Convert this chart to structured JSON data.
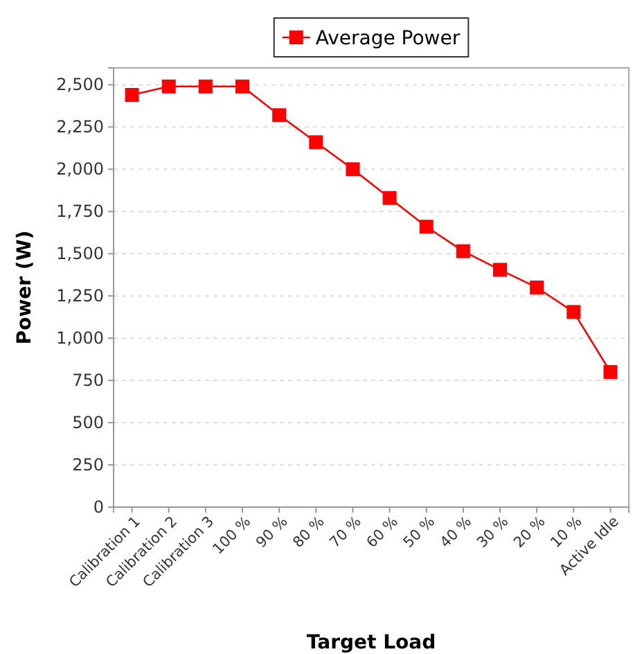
{
  "chart_data": {
    "type": "line",
    "xlabel": "Target Load",
    "ylabel": "Power (W)",
    "categories": [
      "Calibration 1",
      "Calibration 2",
      "Calibration 3",
      "100 %",
      "90 %",
      "80 %",
      "70 %",
      "60 %",
      "50 %",
      "40 %",
      "30 %",
      "20 %",
      "10 %",
      "Active Idle"
    ],
    "series": [
      {
        "name": "Average Power",
        "color": "#ff0000",
        "values": [
          2440,
          2490,
          2490,
          2490,
          2320,
          2160,
          2000,
          1830,
          1660,
          1515,
          1405,
          1300,
          1155,
          800
        ]
      }
    ],
    "ylim": [
      0,
      2600
    ],
    "yticks": [
      {
        "value": 0,
        "label": "0"
      },
      {
        "value": 250,
        "label": "250"
      },
      {
        "value": 500,
        "label": "500"
      },
      {
        "value": 750,
        "label": "750"
      },
      {
        "value": 1000,
        "label": "1,000"
      },
      {
        "value": 1250,
        "label": "1,250"
      },
      {
        "value": 1500,
        "label": "1,500"
      },
      {
        "value": 1750,
        "label": "1,750"
      },
      {
        "value": 2000,
        "label": "2,000"
      },
      {
        "value": 2250,
        "label": "2,250"
      },
      {
        "value": 2500,
        "label": "2,500"
      }
    ],
    "grid": "y",
    "legend": "top",
    "marker": "square",
    "line_style": "solid"
  }
}
